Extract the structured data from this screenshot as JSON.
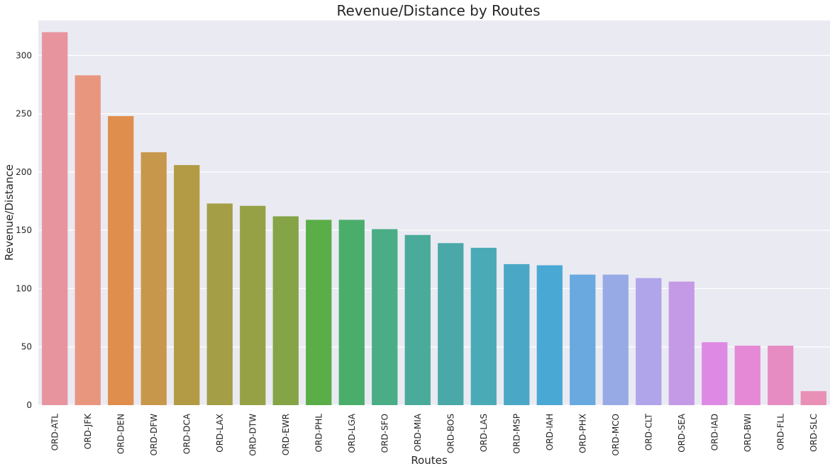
{
  "chart_data": {
    "type": "bar",
    "title": "Revenue/Distance by Routes",
    "xlabel": "Routes",
    "ylabel": "Revenue/Distance",
    "ylim": [
      0,
      330
    ],
    "yticks": [
      0,
      50,
      100,
      150,
      200,
      250,
      300
    ],
    "grid": true,
    "categories": [
      "ORD-ATL",
      "ORD-JFK",
      "ORD-DEN",
      "ORD-DFW",
      "ORD-DCA",
      "ORD-LAX",
      "ORD-DTW",
      "ORD-EWR",
      "ORD-PHL",
      "ORD-LGA",
      "ORD-SFO",
      "ORD-MIA",
      "ORD-BOS",
      "ORD-LAS",
      "ORD-MSP",
      "ORD-IAH",
      "ORD-PHX",
      "ORD-MCO",
      "ORD-CLT",
      "ORD-SEA",
      "ORD-IAD",
      "ORD-BWI",
      "ORD-FLL",
      "ORD-SLC"
    ],
    "values": [
      320,
      283,
      248,
      217,
      206,
      173,
      171,
      162,
      159,
      159,
      151,
      146,
      139,
      135,
      121,
      120,
      112,
      112,
      109,
      106,
      54,
      51,
      51,
      12
    ],
    "colors": [
      "#e8949f",
      "#e9967f",
      "#e08e4d",
      "#c7984c",
      "#b29b44",
      "#a49e46",
      "#96a145",
      "#84a445",
      "#5aad47",
      "#4aae6a",
      "#4aad86",
      "#4aab9a",
      "#4aa9a8",
      "#4aaab6",
      "#4aa8c6",
      "#4aa8d4",
      "#6aa9e0",
      "#98aae6",
      "#b0a4ea",
      "#c49ae6",
      "#de8ae4",
      "#e589d6",
      "#e68cc3",
      "#e890b6"
    ]
  }
}
